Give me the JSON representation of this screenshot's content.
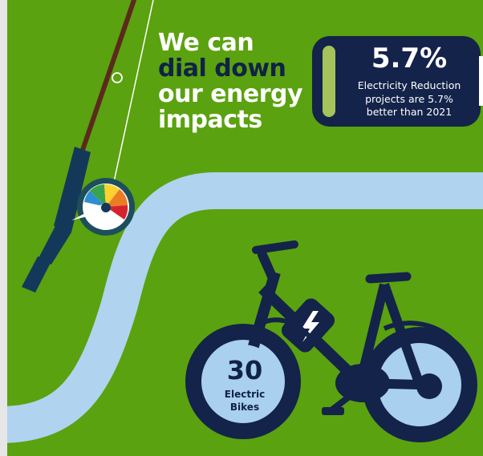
{
  "headline": {
    "line1": "We can",
    "line2": "dial down",
    "line3": "our energy",
    "line4": "impacts"
  },
  "stat": {
    "value": "5.7%",
    "desc_line1": "Electricity Reduction",
    "desc_line2": "projects are 5.7%",
    "desc_line3": "better than 2021"
  },
  "bikes": {
    "count": "30",
    "label_line1": "Electric",
    "label_line2": "Bikes"
  },
  "icons": {
    "fishing_rod": "fishing-rod-icon",
    "gauge": "energy-dial-icon",
    "bike": "electric-bike-icon"
  },
  "colors": {
    "background": "#5aa20f",
    "navy": "#102245",
    "road": "#b0d3ef",
    "accent": "#a4c35a"
  }
}
